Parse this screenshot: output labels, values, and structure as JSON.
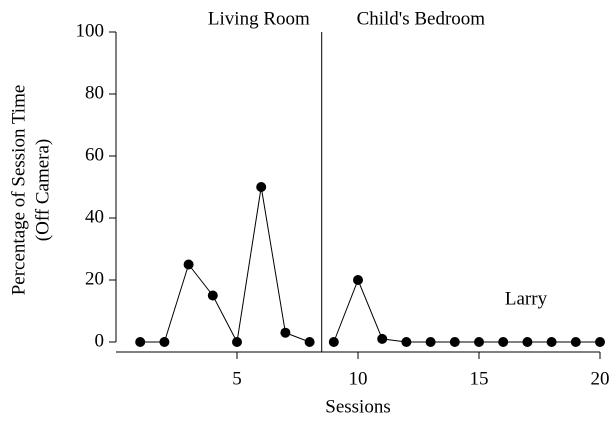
{
  "chart_data": {
    "type": "line",
    "xlabel": "Sessions",
    "ylabel": [
      "Percentage of Session Time",
      "(Off Camera)"
    ],
    "annotation": "Larry",
    "phase_change": 8.5,
    "series": [
      {
        "name": "Living Room",
        "color": "#000000",
        "x": [
          1,
          2,
          3,
          4,
          5,
          6,
          7,
          8
        ],
        "values": [
          0,
          0,
          25,
          15,
          0,
          50,
          3,
          0
        ]
      },
      {
        "name": "Child's Bedroom",
        "color": "#000000",
        "x": [
          9,
          10,
          11,
          12,
          13,
          14,
          15,
          16,
          17,
          18,
          19,
          20
        ],
        "values": [
          0,
          20,
          1,
          0,
          0,
          0,
          0,
          0,
          0,
          0,
          0,
          0
        ]
      }
    ],
    "xlim": [
      0,
      20
    ],
    "xticks": [
      5,
      10,
      15,
      20
    ],
    "ylim": [
      0,
      100
    ],
    "yticks": [
      0,
      20,
      40,
      60,
      80,
      100
    ]
  }
}
